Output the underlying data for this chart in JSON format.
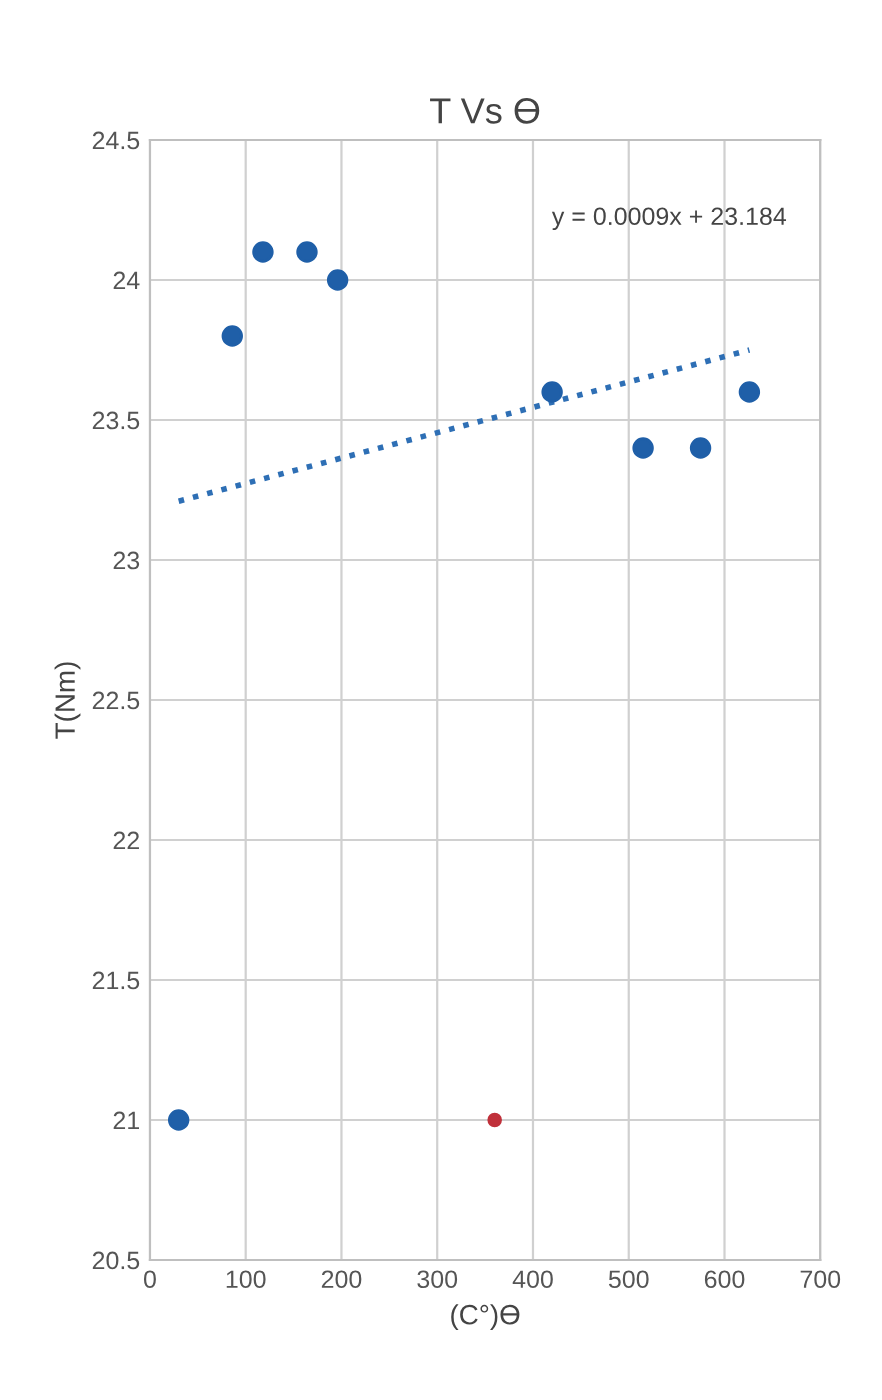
{
  "chart_data": {
    "type": "scatter",
    "title": "T Vs ϴ",
    "xlabel": "(C°)ϴ",
    "ylabel": "T(Nm)",
    "series": [
      {
        "color": "#1f5fa8",
        "x": [
          30,
          86,
          118,
          164,
          196,
          420,
          515,
          575,
          626
        ],
        "values": [
          21.0,
          23.8,
          24.1,
          24.1,
          24.0,
          23.6,
          23.4,
          23.4,
          23.6
        ]
      },
      {
        "color": "#c0303a",
        "x": [
          360
        ],
        "values": [
          21.0
        ]
      },
      {
        "type": "line",
        "color": "#2e6fb5",
        "x": [
          30,
          626
        ],
        "values": [
          23.21,
          23.75
        ],
        "line_style": "dotted",
        "marker": "none"
      }
    ],
    "annotations": [
      "y = 0.0009x + 23.184"
    ],
    "xlim": [
      0,
      700
    ],
    "xticks": [
      0,
      100,
      200,
      300,
      400,
      500,
      600,
      700
    ],
    "ylim": [
      20.5,
      24.5
    ],
    "yticks": [
      20.5,
      21,
      21.5,
      22,
      22.5,
      23,
      23.5,
      24,
      24.5
    ],
    "grid": true,
    "marker": "circle",
    "legend": false
  }
}
